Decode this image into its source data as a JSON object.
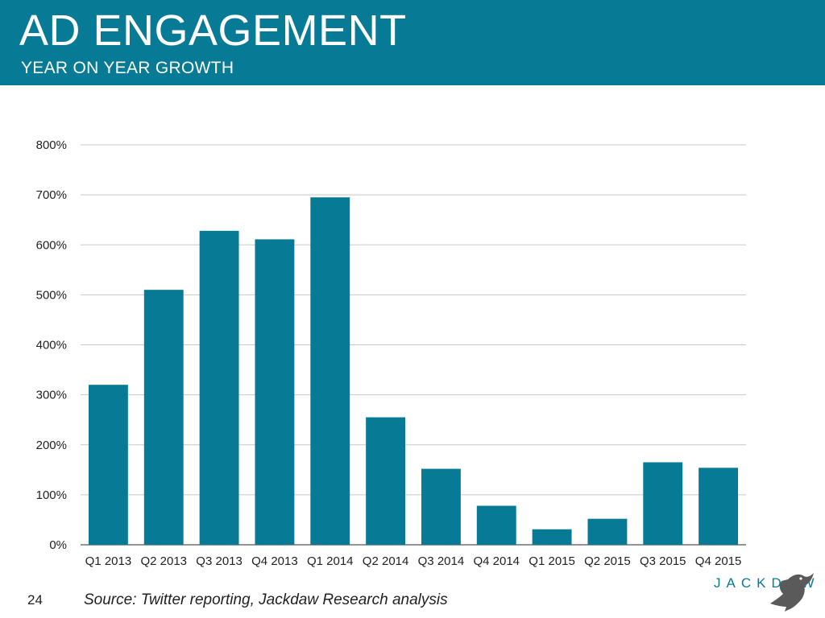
{
  "header": {
    "title": "AD ENGAGEMENT",
    "subtitle": "YEAR ON YEAR GROWTH"
  },
  "footer": {
    "page_number": "24",
    "source": "Source: Twitter reporting, Jackdaw Research analysis",
    "brand": "JACKDAW"
  },
  "colors": {
    "header_bg": "#077b96",
    "bar": "#077b96",
    "grid": "#c8c8c8"
  },
  "chart_data": {
    "type": "bar",
    "categories": [
      "Q1 2013",
      "Q2 2013",
      "Q3 2013",
      "Q4 2013",
      "Q1 2014",
      "Q2 2014",
      "Q3 2014",
      "Q4 2014",
      "Q1 2015",
      "Q2 2015",
      "Q3 2015",
      "Q4 2015"
    ],
    "values": [
      320,
      510,
      628,
      611,
      695,
      255,
      152,
      78,
      31,
      52,
      165,
      154
    ],
    "unit": "%",
    "ylim": [
      0,
      800
    ],
    "yticks": [
      "0%",
      "100%",
      "200%",
      "300%",
      "400%",
      "500%",
      "600%",
      "700%",
      "800%"
    ],
    "grid": true,
    "legend": "none",
    "title": "",
    "xlabel": "",
    "ylabel": ""
  }
}
